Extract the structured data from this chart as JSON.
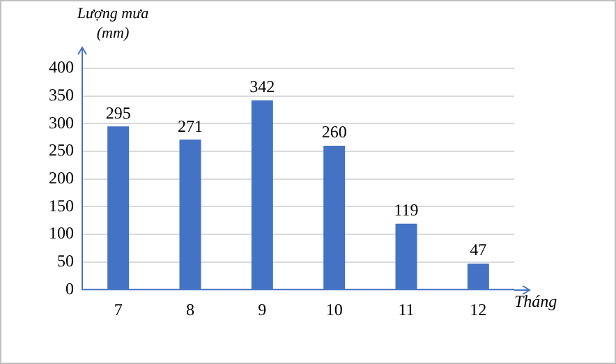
{
  "chart_data": {
    "type": "bar",
    "ylabel": "Lượng mưa (mm)",
    "xlabel": "Tháng",
    "categories": [
      "7",
      "8",
      "9",
      "10",
      "11",
      "12"
    ],
    "values": [
      295,
      271,
      342,
      260,
      119,
      47
    ],
    "color": "#4472c4",
    "ylim": [
      0,
      400
    ],
    "yticks": [
      0,
      50,
      100,
      150,
      200,
      250,
      300,
      350,
      400
    ],
    "grid": "y",
    "data_labels": true,
    "legend": false
  }
}
